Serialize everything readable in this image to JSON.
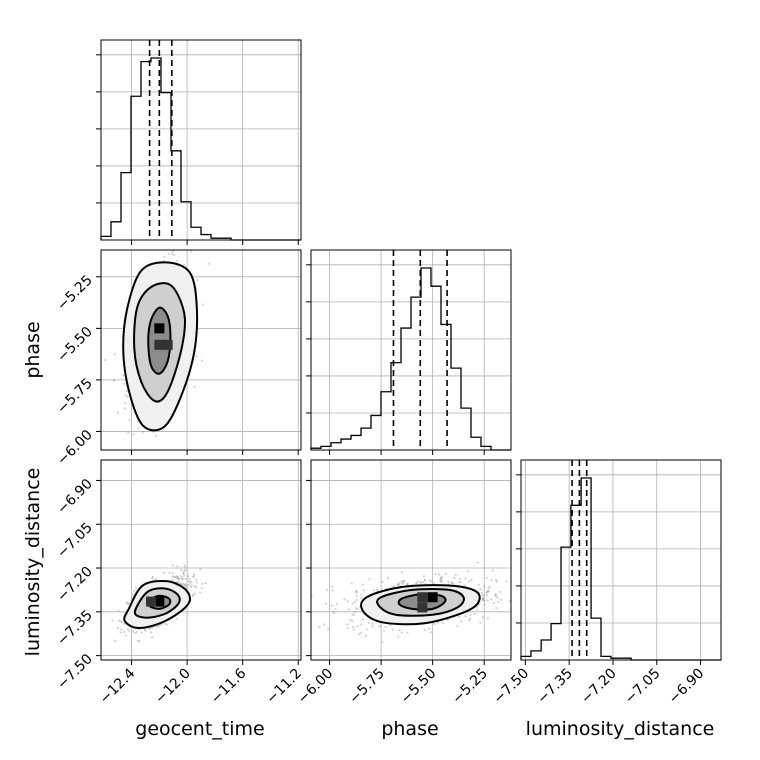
{
  "chart_data": {
    "type": "corner",
    "parameters": [
      "geocent_time",
      "phase",
      "luminosity_distance"
    ],
    "axis_labels": {
      "geocent_time": "geocent_time",
      "phase": "phase",
      "luminosity_distance": "luminosity_distance"
    },
    "ranges": {
      "geocent_time": [
        -12.62,
        -11.18
      ],
      "phase": [
        -6.09,
        -5.12
      ],
      "luminosity_distance": [
        -7.515,
        -6.83
      ]
    },
    "ticks": {
      "geocent_time": {
        "values": [
          -12.4,
          -12.0,
          -11.6,
          -11.2
        ],
        "labels": [
          "−12.4",
          "−12.0",
          "−11.6",
          "−11.2"
        ]
      },
      "phase": {
        "values": [
          -6.0,
          -5.75,
          -5.5,
          -5.25
        ],
        "labels": [
          "−6.00",
          "−5.75",
          "−5.50",
          "−5.25"
        ]
      },
      "luminosity_distance": {
        "values": [
          -7.5,
          -7.35,
          -7.2,
          -7.05,
          -6.9
        ],
        "labels": [
          "−7.50",
          "−7.35",
          "−7.20",
          "−7.05",
          "−6.90"
        ]
      }
    },
    "quantiles": {
      "geocent_time": [
        -12.27,
        -12.2,
        -12.11
      ],
      "phase": [
        -5.69,
        -5.56,
        -5.43
      ],
      "luminosity_distance": [
        -7.34,
        -7.315,
        -7.29
      ]
    },
    "histograms": {
      "geocent_time": {
        "edges": [
          -12.62,
          -12.548,
          -12.476,
          -12.404,
          -12.332,
          -12.26,
          -12.188,
          -12.116,
          -12.044,
          -11.972,
          -11.9,
          -11.828,
          -11.756,
          -11.684,
          -11.612,
          -11.54,
          -11.468,
          -11.396,
          -11.324,
          -11.252,
          -11.18
        ],
        "counts": [
          2,
          10,
          37,
          79,
          98,
          100,
          81,
          49,
          21,
          7,
          3,
          1,
          1,
          0,
          0,
          0,
          0,
          0,
          0,
          0
        ]
      },
      "phase": {
        "edges": [
          -6.09,
          -6.0415,
          -5.993,
          -5.9445,
          -5.896,
          -5.8475,
          -5.799,
          -5.7505,
          -5.702,
          -5.6535,
          -5.605,
          -5.5565,
          -5.508,
          -5.4595,
          -5.411,
          -5.3625,
          -5.314,
          -5.2655,
          -5.217,
          -5.1685,
          -5.12
        ],
        "counts": [
          1,
          2,
          4,
          6,
          8,
          12,
          19,
          32,
          48,
          67,
          84,
          100,
          90,
          69,
          45,
          23,
          7,
          2,
          0,
          0
        ]
      },
      "luminosity_distance": {
        "edges": [
          -7.515,
          -7.481,
          -7.446,
          -7.412,
          -7.378,
          -7.344,
          -7.309,
          -7.275,
          -7.241,
          -7.207,
          -7.173,
          -7.138,
          -7.104,
          -7.07,
          -7.035,
          -7.001,
          -6.967,
          -6.933,
          -6.899,
          -6.864,
          -6.83
        ],
        "counts": [
          2,
          5,
          11,
          20,
          62,
          85,
          100,
          23,
          2,
          1,
          1,
          0,
          0,
          0,
          0,
          0,
          0,
          0,
          0,
          0
        ]
      }
    },
    "densities": {
      "phase_vs_geocent_time": {
        "x": "geocent_time",
        "y": "phase",
        "mean": [
          -12.2,
          -5.56
        ],
        "std": [
          0.09,
          0.14
        ],
        "corr": 0.45,
        "contours": [
          {
            "level": "1sigma",
            "points": [
              [
                -12.26,
                -5.46
              ],
              [
                -12.2,
                -5.4
              ],
              [
                -12.14,
                -5.44
              ],
              [
                -12.12,
                -5.54
              ],
              [
                -12.14,
                -5.66
              ],
              [
                -12.2,
                -5.72
              ],
              [
                -12.26,
                -5.68
              ],
              [
                -12.28,
                -5.56
              ]
            ]
          },
          {
            "level": "2sigma",
            "points": [
              [
                -12.36,
                -5.4
              ],
              [
                -12.26,
                -5.3
              ],
              [
                -12.12,
                -5.29
              ],
              [
                -12.03,
                -5.4
              ],
              [
                -12.02,
                -5.52
              ],
              [
                -12.08,
                -5.7
              ],
              [
                -12.16,
                -5.83
              ],
              [
                -12.24,
                -5.85
              ],
              [
                -12.33,
                -5.76
              ],
              [
                -12.38,
                -5.6
              ]
            ]
          },
          {
            "level": "3sigma",
            "points": [
              [
                -12.43,
                -5.4
              ],
              [
                -12.33,
                -5.22
              ],
              [
                -12.15,
                -5.18
              ],
              [
                -11.98,
                -5.23
              ],
              [
                -11.93,
                -5.4
              ],
              [
                -11.95,
                -5.62
              ],
              [
                -12.05,
                -5.84
              ],
              [
                -12.17,
                -5.98
              ],
              [
                -12.32,
                -5.97
              ],
              [
                -12.42,
                -5.8
              ],
              [
                -12.46,
                -5.6
              ]
            ]
          }
        ],
        "peak_cells": [
          [
            -12.2,
            -5.5
          ],
          [
            -12.2,
            -5.58
          ],
          [
            -12.14,
            -5.58
          ]
        ]
      },
      "luminosity_distance_vs_geocent_time": {
        "x": "geocent_time",
        "y": "luminosity_distance",
        "mean": [
          -12.2,
          -7.315
        ],
        "std": [
          0.09,
          0.035
        ],
        "corr": 0.6,
        "contours": [
          {
            "level": "1sigma",
            "points": [
              [
                -12.27,
                -7.31
              ],
              [
                -12.2,
                -7.295
              ],
              [
                -12.13,
                -7.305
              ],
              [
                -12.13,
                -7.325
              ],
              [
                -12.2,
                -7.34
              ],
              [
                -12.27,
                -7.33
              ]
            ]
          },
          {
            "level": "2sigma",
            "points": [
              [
                -12.36,
                -7.33
              ],
              [
                -12.28,
                -7.28
              ],
              [
                -12.16,
                -7.27
              ],
              [
                -12.07,
                -7.29
              ],
              [
                -12.06,
                -7.32
              ],
              [
                -12.15,
                -7.355
              ],
              [
                -12.28,
                -7.37
              ],
              [
                -12.37,
                -7.36
              ]
            ]
          },
          {
            "level": "3sigma",
            "points": [
              [
                -12.42,
                -7.34
              ],
              [
                -12.32,
                -7.26
              ],
              [
                -12.15,
                -7.245
              ],
              [
                -12.02,
                -7.27
              ],
              [
                -11.98,
                -7.31
              ],
              [
                -12.05,
                -7.35
              ],
              [
                -12.2,
                -7.39
              ],
              [
                -12.36,
                -7.405
              ],
              [
                -12.45,
                -7.38
              ]
            ]
          }
        ],
        "peak_cells": [
          [
            -12.2,
            -7.315
          ],
          [
            -12.26,
            -7.315
          ]
        ]
      },
      "luminosity_distance_vs_phase": {
        "x": "phase",
        "y": "luminosity_distance",
        "mean": [
          -5.56,
          -7.315
        ],
        "std": [
          0.14,
          0.035
        ],
        "corr": 0.25,
        "contours": [
          {
            "level": "1sigma",
            "points": [
              [
                -5.65,
                -7.305
              ],
              [
                -5.56,
                -7.29
              ],
              [
                -5.46,
                -7.295
              ],
              [
                -5.44,
                -7.315
              ],
              [
                -5.5,
                -7.34
              ],
              [
                -5.6,
                -7.34
              ],
              [
                -5.66,
                -7.325
              ]
            ]
          },
          {
            "level": "2sigma",
            "points": [
              [
                -5.75,
                -7.3
              ],
              [
                -5.6,
                -7.275
              ],
              [
                -5.42,
                -7.275
              ],
              [
                -5.35,
                -7.3
              ],
              [
                -5.38,
                -7.335
              ],
              [
                -5.5,
                -7.36
              ],
              [
                -5.68,
                -7.36
              ],
              [
                -5.76,
                -7.33
              ]
            ]
          },
          {
            "level": "3sigma",
            "points": [
              [
                -5.82,
                -7.3
              ],
              [
                -5.65,
                -7.265
              ],
              [
                -5.42,
                -7.26
              ],
              [
                -5.29,
                -7.28
              ],
              [
                -5.28,
                -7.32
              ],
              [
                -5.36,
                -7.355
              ],
              [
                -5.55,
                -7.39
              ],
              [
                -5.75,
                -7.385
              ],
              [
                -5.84,
                -7.345
              ]
            ]
          }
        ],
        "peak_cells": [
          [
            -5.5,
            -7.3
          ],
          [
            -5.55,
            -7.3
          ],
          [
            -5.55,
            -7.335
          ]
        ]
      }
    },
    "grid": true
  }
}
